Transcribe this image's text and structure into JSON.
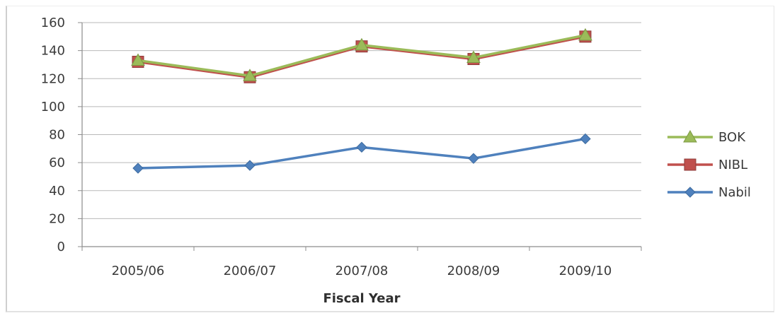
{
  "chart_data": {
    "type": "line",
    "title": "",
    "xlabel": "Fiscal Year",
    "ylabel": "",
    "categories": [
      "2005/06",
      "2006/07",
      "2007/08",
      "2008/09",
      "2009/10"
    ],
    "ylim": [
      0,
      160
    ],
    "yticks": [
      0,
      20,
      40,
      60,
      80,
      100,
      120,
      140,
      160
    ],
    "grid": true,
    "legend_position": "right",
    "series": [
      {
        "name": "BOK",
        "values": [
          133,
          122,
          144,
          135,
          151
        ],
        "color": "#9bbb59",
        "marker": "triangle"
      },
      {
        "name": "NIBL",
        "values": [
          132,
          121,
          143,
          134,
          150
        ],
        "color": "#c0504d",
        "marker": "square"
      },
      {
        "name": "Nabil",
        "values": [
          56,
          58,
          71,
          63,
          77
        ],
        "color": "#4f81bd",
        "marker": "diamond"
      }
    ]
  }
}
